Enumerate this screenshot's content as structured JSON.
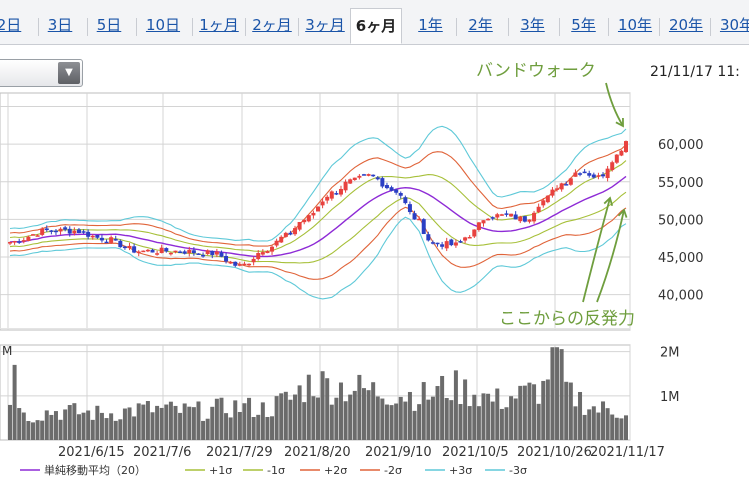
{
  "tabs": [
    {
      "label": "2日",
      "active": false
    },
    {
      "label": "3日",
      "active": false
    },
    {
      "label": "5日",
      "active": false
    },
    {
      "label": "10日",
      "active": false
    },
    {
      "label": "1ヶ月",
      "active": false
    },
    {
      "label": "2ヶ月",
      "active": false
    },
    {
      "label": "3ヶ月",
      "active": false
    },
    {
      "label": "6ヶ月",
      "active": true
    },
    {
      "label": "1年",
      "active": false
    },
    {
      "label": "2年",
      "active": false
    },
    {
      "label": "3年",
      "active": false
    },
    {
      "label": "5年",
      "active": false
    },
    {
      "label": "10年",
      "active": false
    },
    {
      "label": "20年",
      "active": false
    },
    {
      "label": "30年",
      "active": false
    }
  ],
  "timestamp": "21/11/17 11:",
  "annotations": {
    "top": "バンドウォーク",
    "bottom": "ここからの反発力"
  },
  "colors": {
    "up": "#e8423f",
    "down": "#2b3fc4",
    "sma": "#8e2bd6",
    "sigma1": "#a7c03a",
    "sigma2": "#e0643a",
    "sigma3": "#5fc9d8",
    "annotation": "#6f9e3e",
    "volume": "#6b6b6b"
  },
  "chart_data": [
    {
      "type": "candlestick",
      "description_series": "price with Bollinger Bands",
      "x_ticks": [
        "2021/6/15",
        "2021/7/6",
        "2021/7/29",
        "2021/8/20",
        "2021/9/10",
        "2021/10/5",
        "2021/10/26",
        "2021/11/17"
      ],
      "y_ticks": [
        40000,
        45000,
        50000,
        55000,
        60000
      ],
      "y_tick_labels": [
        "40,000",
        "45,000",
        "50,000",
        "55,000",
        "60,000"
      ],
      "ylim": [
        35300,
        66800
      ],
      "close_anchors": [
        [
          0,
          47000
        ],
        [
          8,
          48500
        ],
        [
          14,
          48500
        ],
        [
          20,
          47500
        ],
        [
          28,
          45800
        ],
        [
          36,
          45800
        ],
        [
          44,
          45500
        ],
        [
          50,
          43800
        ],
        [
          56,
          46200
        ],
        [
          60,
          47800
        ],
        [
          64,
          50000
        ],
        [
          70,
          53500
        ],
        [
          74,
          55000
        ],
        [
          78,
          55800
        ],
        [
          84,
          53800
        ],
        [
          88,
          50200
        ],
        [
          92,
          46800
        ],
        [
          97,
          46600
        ],
        [
          100,
          48000
        ],
        [
          104,
          50500
        ],
        [
          108,
          50500
        ],
        [
          112,
          50000
        ],
        [
          116,
          52500
        ],
        [
          120,
          54800
        ],
        [
          124,
          56500
        ],
        [
          128,
          55600
        ],
        [
          132,
          58500
        ],
        [
          134,
          60500
        ]
      ],
      "n_days": 135,
      "legend": [
        {
          "label": "単純移動平均（20）",
          "color": "#8e2bd6"
        },
        {
          "label": "+1σ",
          "color": "#a7c03a"
        },
        {
          "label": "-1σ",
          "color": "#a7c03a"
        },
        {
          "label": "+2σ",
          "color": "#e0643a"
        },
        {
          "label": "-2σ",
          "color": "#e0643a"
        },
        {
          "label": "+3σ",
          "color": "#5fc9d8"
        },
        {
          "label": "-3σ",
          "color": "#5fc9d8"
        }
      ]
    },
    {
      "type": "bar",
      "description_series": "volume",
      "unit_label": "M",
      "y_ticks": [
        1000000,
        2000000
      ],
      "y_tick_labels": [
        "1M",
        "2M"
      ],
      "ylim": [
        0,
        2150000
      ],
      "volume_anchors": [
        [
          0,
          800000
        ],
        [
          1,
          1700000
        ],
        [
          2,
          1000000
        ],
        [
          3,
          550000
        ],
        [
          10,
          650000
        ],
        [
          20,
          600000
        ],
        [
          30,
          700000
        ],
        [
          40,
          650000
        ],
        [
          50,
          750000
        ],
        [
          56,
          700000
        ],
        [
          60,
          900000
        ],
        [
          66,
          1300000
        ],
        [
          72,
          1200000
        ],
        [
          80,
          1100000
        ],
        [
          90,
          1000000
        ],
        [
          96,
          1200000
        ],
        [
          100,
          1100000
        ],
        [
          106,
          900000
        ],
        [
          110,
          1000000
        ],
        [
          116,
          1150000
        ],
        [
          118,
          2100000
        ],
        [
          122,
          1000000
        ],
        [
          128,
          700000
        ],
        [
          134,
          650000
        ]
      ]
    }
  ]
}
